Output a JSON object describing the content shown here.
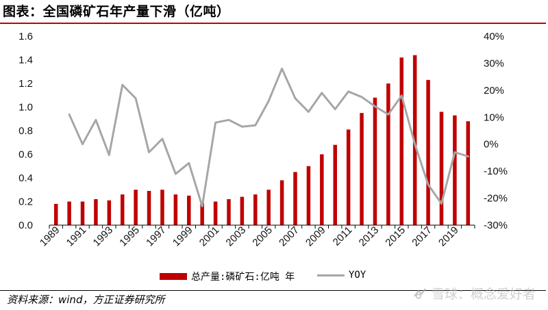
{
  "title": "图表：全国磷矿石年产量下滑（亿吨）",
  "source": "资料来源：wind，方正证券研究所",
  "watermark": "雪球：概念爱好者",
  "colors": {
    "bar": "#c00000",
    "line": "#a6a6a6",
    "title_rule": "#c00000"
  },
  "chart_data": {
    "type": "bar+line",
    "categories": [
      "1989",
      "1990",
      "1991",
      "1992",
      "1993",
      "1994",
      "1995",
      "1996",
      "1997",
      "1998",
      "1999",
      "2000",
      "2001",
      "2002",
      "2003",
      "2004",
      "2005",
      "2006",
      "2007",
      "2008",
      "2009",
      "2010",
      "2011",
      "2012",
      "2013",
      "2014",
      "2015",
      "2016",
      "2017",
      "2018",
      "2019",
      "2020"
    ],
    "x_tick_labels": [
      "1989",
      "1991",
      "1993",
      "1995",
      "1997",
      "1999",
      "2001",
      "2003",
      "2005",
      "2007",
      "2009",
      "2011",
      "2013",
      "2015",
      "2017",
      "2019"
    ],
    "series": [
      {
        "name": "总产量:磷矿石:亿吨 年",
        "type": "bar",
        "axis": "left",
        "values": [
          0.18,
          0.2,
          0.2,
          0.22,
          0.21,
          0.26,
          0.3,
          0.29,
          0.3,
          0.26,
          0.25,
          0.19,
          0.2,
          0.22,
          0.24,
          0.26,
          0.3,
          0.38,
          0.45,
          0.5,
          0.6,
          0.68,
          0.81,
          0.95,
          1.08,
          1.2,
          1.42,
          1.44,
          1.23,
          0.96,
          0.93,
          0.88
        ]
      },
      {
        "name": "YOY",
        "type": "line",
        "axis": "right",
        "values": [
          null,
          11,
          0,
          9,
          -4,
          22,
          17,
          -3,
          2,
          -11,
          -7,
          -23,
          8,
          9,
          6.5,
          7,
          16,
          28,
          17,
          12,
          19,
          13,
          19.5,
          17.5,
          14,
          11,
          18,
          0,
          -15,
          -22,
          -3,
          -4.5
        ]
      }
    ],
    "y_left": {
      "min": 0,
      "max": 1.6,
      "ticks": [
        "0.0",
        "0.2",
        "0.4",
        "0.6",
        "0.8",
        "1.0",
        "1.2",
        "1.4",
        "1.6"
      ]
    },
    "y_right": {
      "min": -30,
      "max": 40,
      "ticks": [
        "-30%",
        "-20%",
        "-10%",
        "0%",
        "10%",
        "20%",
        "30%",
        "40%"
      ]
    },
    "legend": [
      "总产量:磷矿石:亿吨 年",
      "YOY"
    ]
  }
}
